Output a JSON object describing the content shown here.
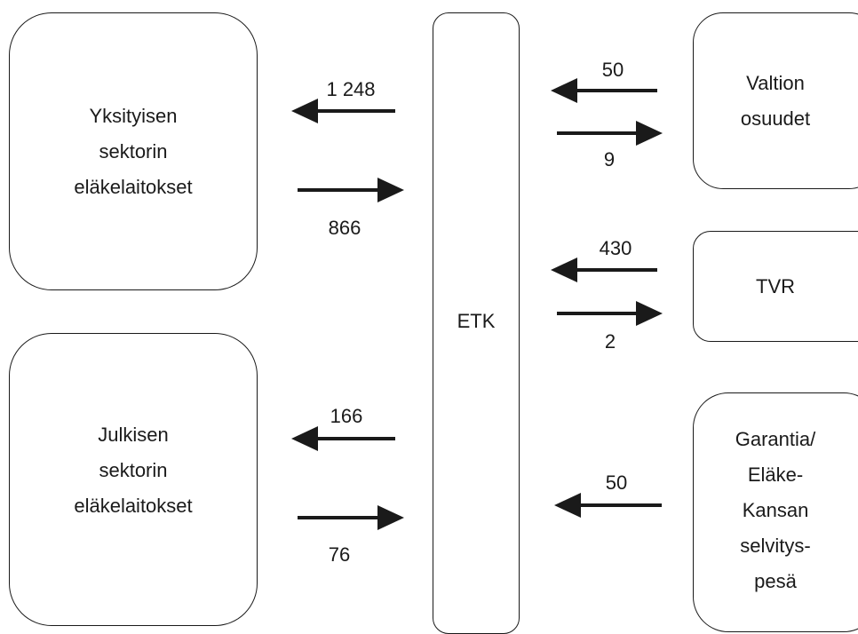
{
  "nodes": {
    "private": {
      "lines": [
        "Yksityisen",
        "sektorin",
        "eläkelaitokset"
      ]
    },
    "public": {
      "lines": [
        "Julkisen",
        "sektorin",
        "eläkelaitokset"
      ]
    },
    "etk": {
      "label": "ETK"
    },
    "state": {
      "lines": [
        "Valtion",
        "osuudet"
      ]
    },
    "tvr": {
      "label": "TVR"
    },
    "garantia": {
      "lines": [
        "Garantia/",
        "Eläke-",
        "Kansan",
        "selvitys-",
        "pesä"
      ]
    }
  },
  "flows": {
    "etk_to_private": "1 248",
    "private_to_etk": "866",
    "etk_to_public": "166",
    "public_to_etk": "76",
    "state_to_etk": "50",
    "etk_to_state": "9",
    "tvr_to_etk": "430",
    "etk_to_tvr": "2",
    "garantia_to_etk": "50"
  }
}
